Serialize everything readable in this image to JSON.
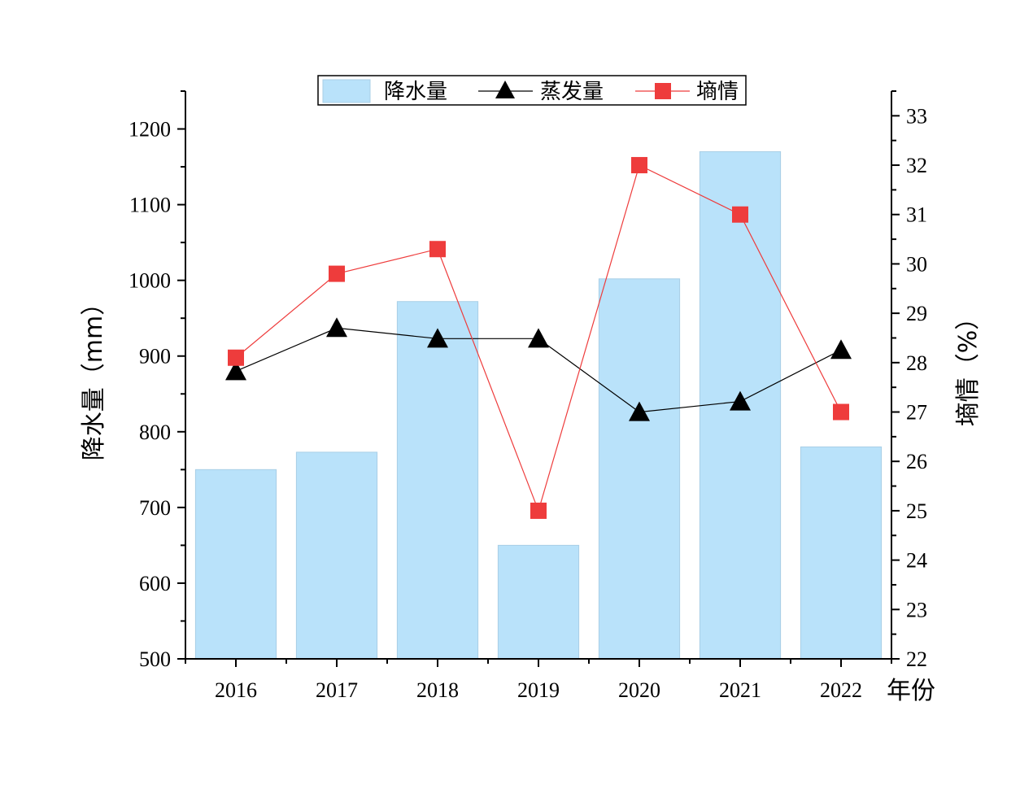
{
  "chart_data": {
    "type": "bar",
    "categories": [
      "2016",
      "2017",
      "2018",
      "2019",
      "2020",
      "2021",
      "2022"
    ],
    "xlabel": "年份",
    "ylabel_left": "降水量（mm）",
    "ylabel_right": "墒情（%）",
    "ylim_left": [
      500,
      1250
    ],
    "ylim_right": [
      22,
      33.5
    ],
    "yticks_left": [
      500,
      600,
      700,
      800,
      900,
      1000,
      1100,
      1200
    ],
    "yticks_right": [
      22,
      23,
      24,
      25,
      26,
      27,
      28,
      29,
      30,
      31,
      32,
      33
    ],
    "legend_position": "top-center",
    "series": [
      {
        "name": "降水量",
        "kind": "bar",
        "axis": "left",
        "color": "#b9e2fa",
        "values": [
          750,
          773,
          972,
          650,
          1002,
          1170,
          780
        ]
      },
      {
        "name": "蒸发量",
        "kind": "line",
        "marker": "triangle",
        "axis": "left",
        "color": "#000000",
        "values": [
          880,
          937,
          923,
          923,
          826,
          840,
          908
        ]
      },
      {
        "name": "墒情",
        "kind": "line",
        "marker": "square",
        "axis": "right",
        "color": "#ee3c3c",
        "values": [
          28.1,
          29.8,
          30.3,
          25.0,
          32.0,
          31.0,
          27.0
        ]
      }
    ]
  }
}
